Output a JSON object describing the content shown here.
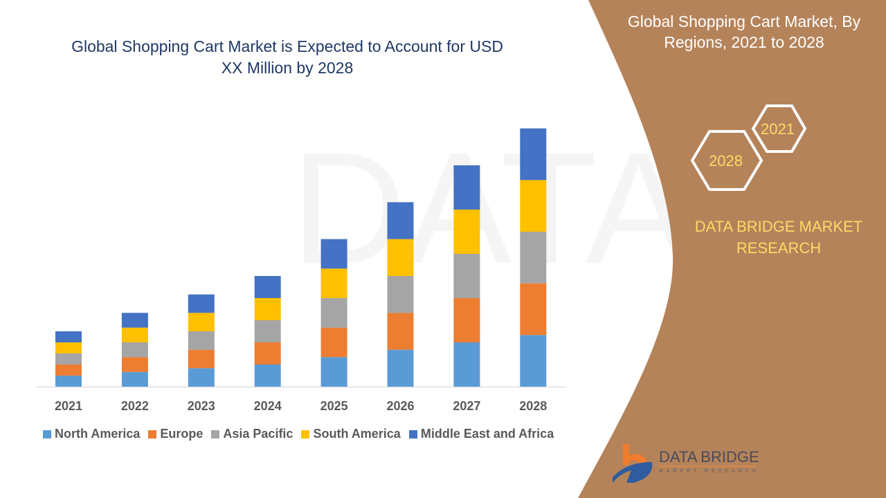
{
  "title": "Global Shopping Cart Market is Expected to Account for USD XX Million by 2028",
  "side_panel": {
    "title": "Global Shopping Cart Market, By Regions, 2021 to 2028",
    "hex_years": [
      "2021",
      "2028"
    ],
    "brand": "DATA BRIDGE MARKET RESEARCH",
    "logo_text": "DATA BRIDGE",
    "logo_subtext": "MARKET RESEARCH",
    "panel_color": "#B5835A"
  },
  "chart_data": {
    "type": "bar",
    "stacked": true,
    "title": "Global Shopping Cart Market is Expected to Account for USD XX Million by 2028",
    "xlabel": "",
    "ylabel": "",
    "categories": [
      "2021",
      "2022",
      "2023",
      "2024",
      "2025",
      "2026",
      "2027",
      "2028"
    ],
    "series": [
      {
        "name": "North America",
        "color": "#5B9BD5",
        "values": [
          3,
          4,
          5,
          6,
          8,
          10,
          12,
          14
        ]
      },
      {
        "name": "Europe",
        "color": "#ED7D31",
        "values": [
          3,
          4,
          5,
          6,
          8,
          10,
          12,
          14
        ]
      },
      {
        "name": "Asia Pacific",
        "color": "#A5A5A5",
        "values": [
          3,
          4,
          5,
          6,
          8,
          10,
          12,
          14
        ]
      },
      {
        "name": "South America",
        "color": "#FFC000",
        "values": [
          3,
          4,
          5,
          6,
          8,
          10,
          12,
          14
        ]
      },
      {
        "name": "Middle East and Africa",
        "color": "#4472C4",
        "values": [
          3,
          4,
          5,
          6,
          8,
          10,
          12,
          14
        ]
      }
    ],
    "y_axis_shown": false,
    "grid": false,
    "legend_position": "bottom"
  }
}
